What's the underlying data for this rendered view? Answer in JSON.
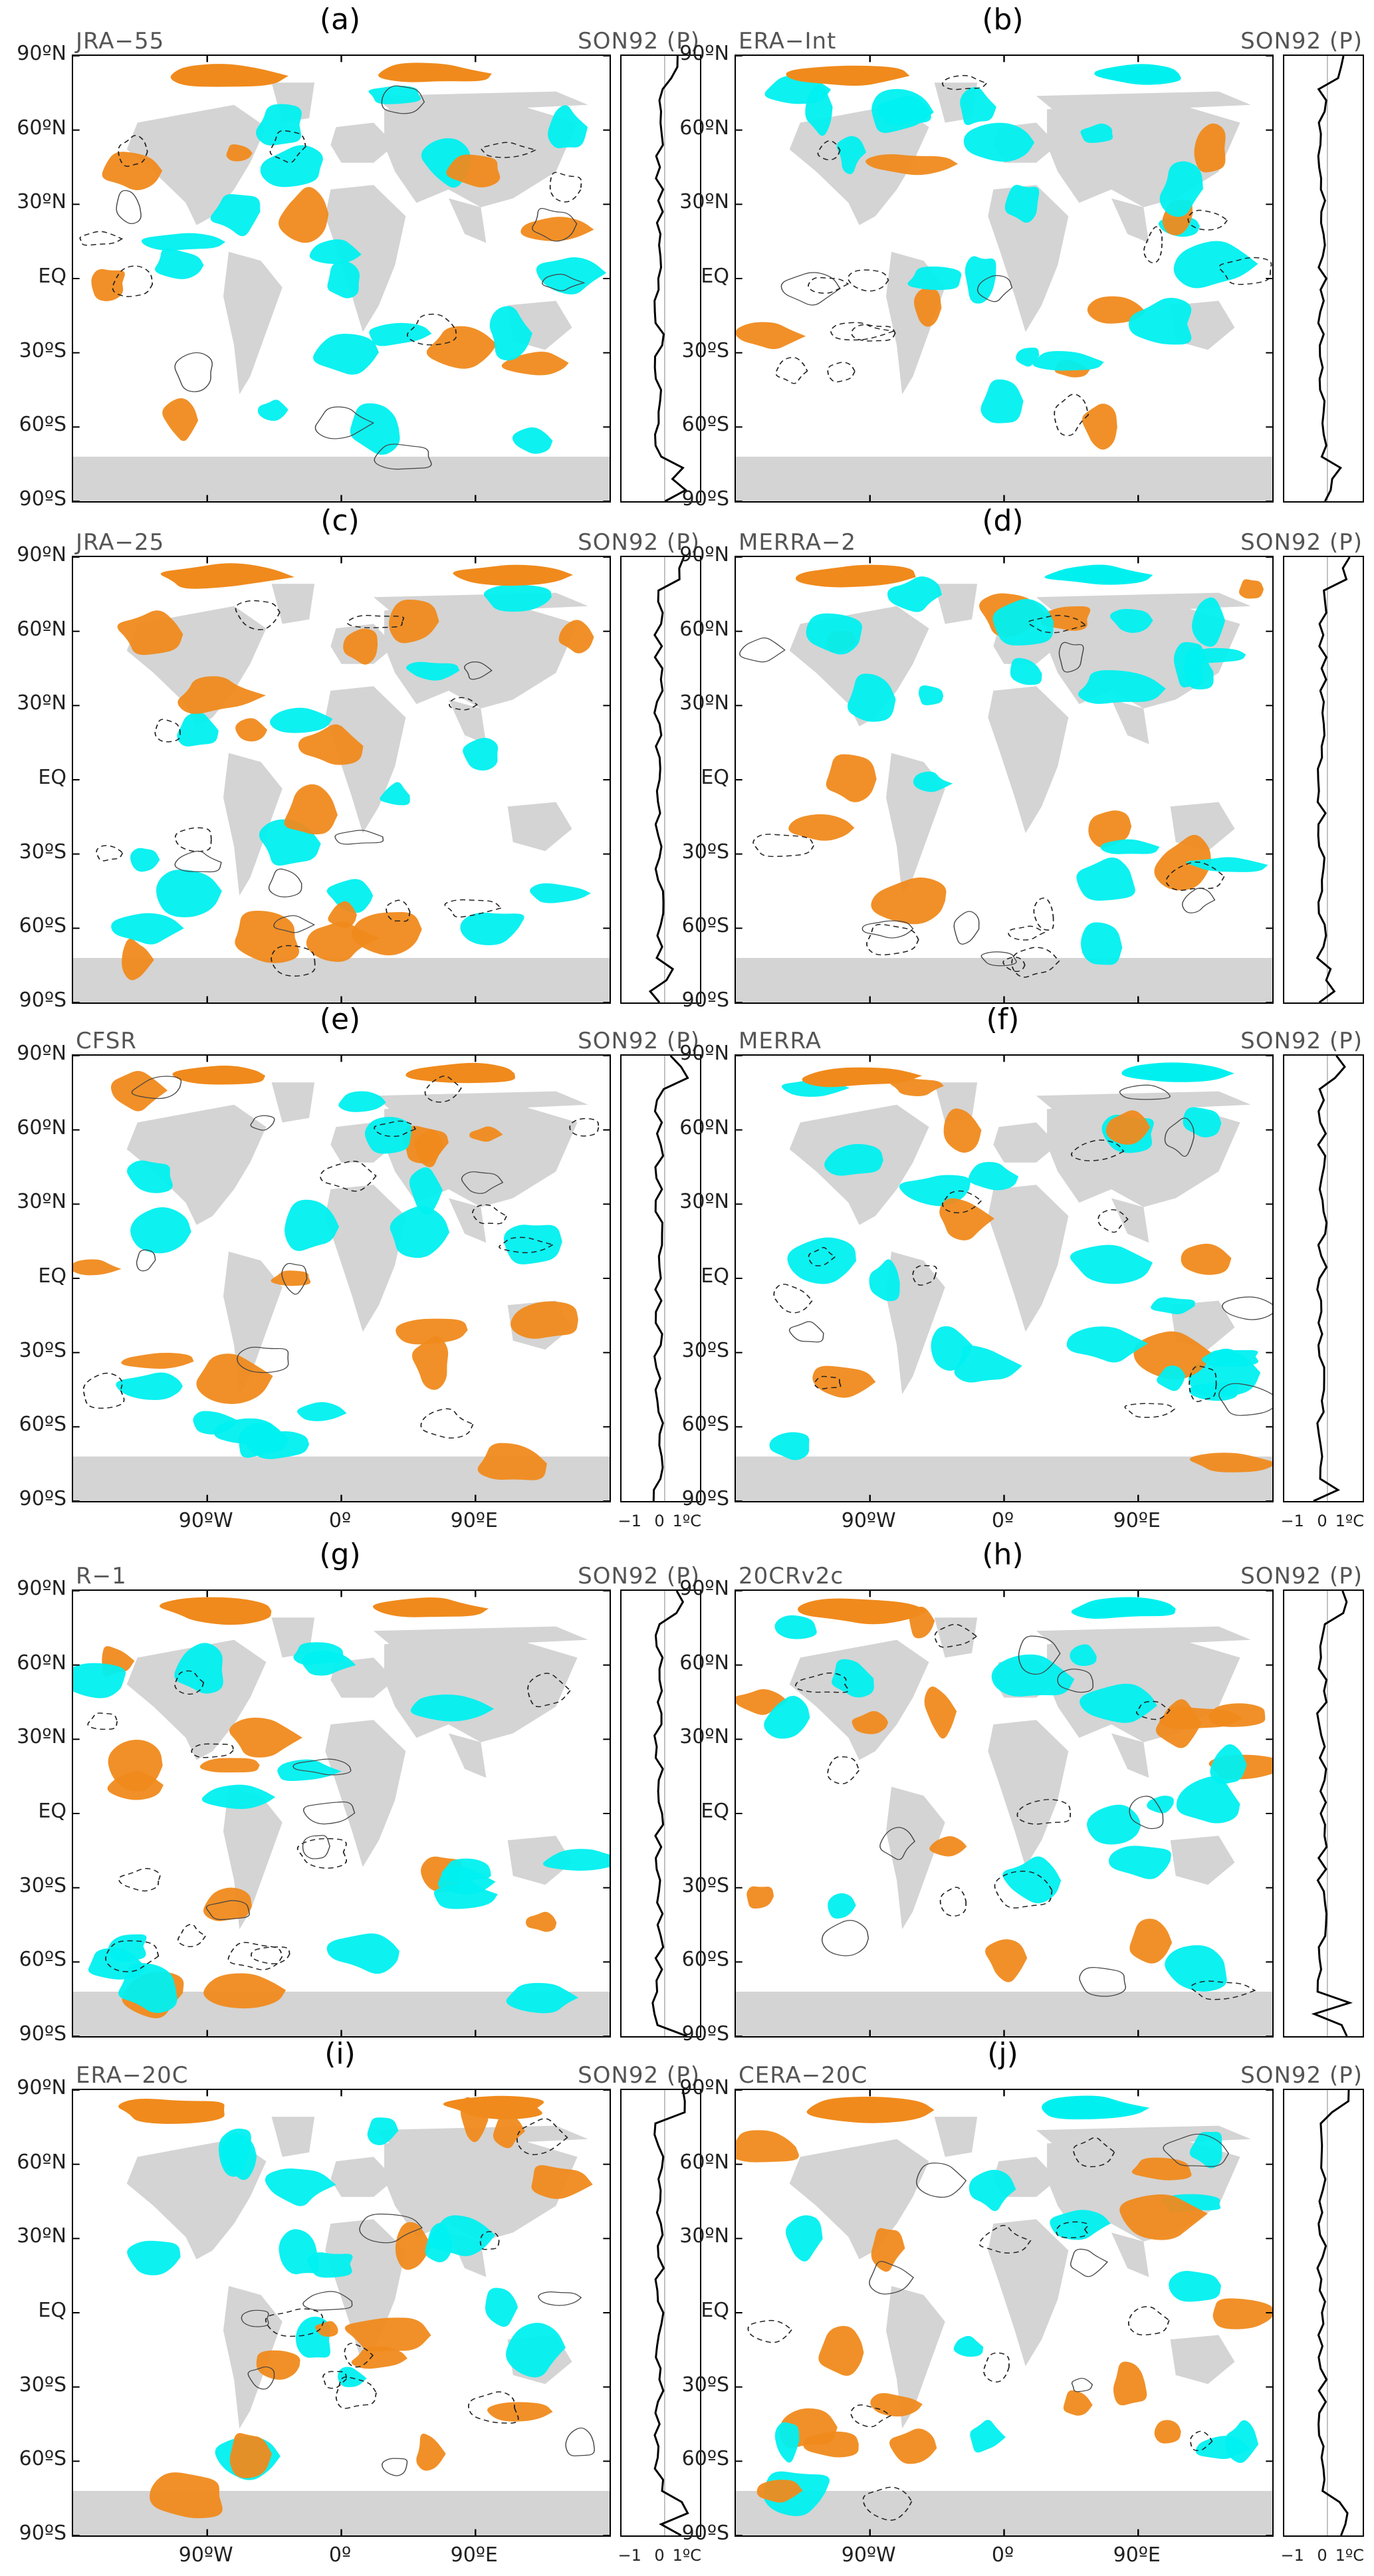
{
  "panels": [
    {
      "letter": "(a)",
      "dataset": "JRA−55",
      "season": "SON92 (P)"
    },
    {
      "letter": "(b)",
      "dataset": "ERA−Int",
      "season": "SON92 (P)"
    },
    {
      "letter": "(c)",
      "dataset": "JRA−25",
      "season": "SON92 (P)"
    },
    {
      "letter": "(d)",
      "dataset": "MERRA−2",
      "season": "SON92 (P)"
    },
    {
      "letter": "(e)",
      "dataset": "CFSR",
      "season": "SON92 (P)"
    },
    {
      "letter": "(f)",
      "dataset": "MERRA",
      "season": "SON92 (P)"
    },
    {
      "letter": "(g)",
      "dataset": "R−1",
      "season": "SON92 (P)"
    },
    {
      "letter": "(h)",
      "dataset": "20CRv2c",
      "season": "SON92 (P)"
    },
    {
      "letter": "(i)",
      "dataset": "ERA−20C",
      "season": "SON92 (P)"
    },
    {
      "letter": "(j)",
      "dataset": "CERA−20C",
      "season": "SON92 (P)"
    }
  ],
  "lat_labels": [
    "90ºN",
    "60ºN",
    "30ºN",
    "EQ",
    "30ºS",
    "60ºS",
    "90ºS"
  ],
  "lon_labels": [
    "90ºW",
    "0º",
    "90ºE"
  ],
  "profile_scale": [
    "−1",
    "0",
    "1ºC"
  ],
  "colors": {
    "warm": "#f08a1c",
    "cool": "#00f0f0",
    "land": "#d4d4d4",
    "frame": "#000000"
  }
}
